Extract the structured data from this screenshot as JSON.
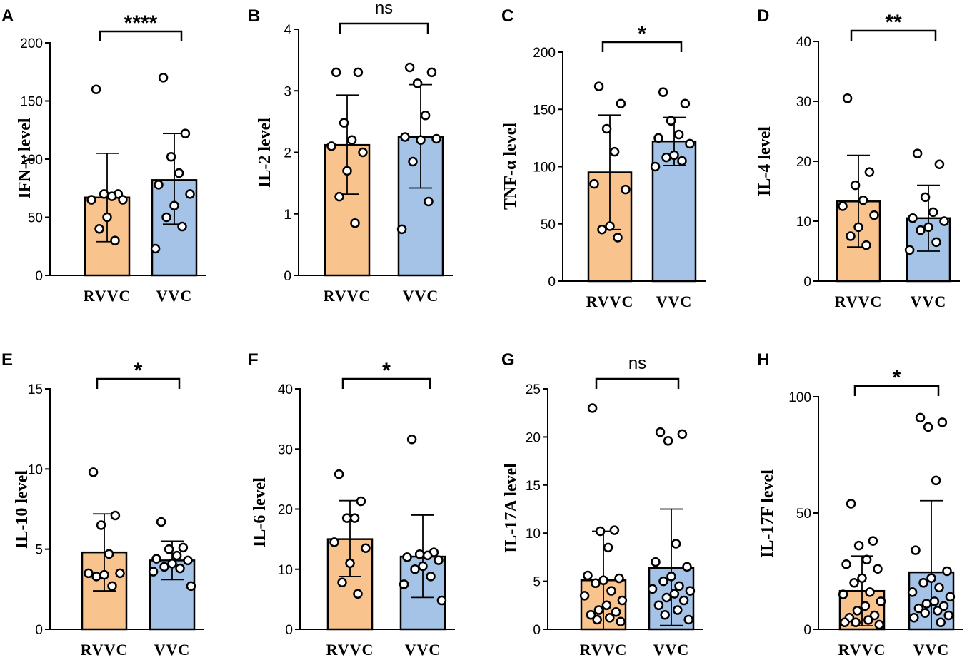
{
  "figure": {
    "colors": {
      "rvvc_fill": "#F8C38D",
      "vvc_fill": "#A4C3E6",
      "stroke": "#000000",
      "point_fill": "#ffffff"
    }
  },
  "chart_data": [
    {
      "type": "bar",
      "panel": "A",
      "ylabel": "IFN-γ level",
      "categories": [
        "RVVC",
        "VVC"
      ],
      "ylim": [
        0,
        200
      ],
      "yticks": [
        0,
        50,
        100,
        150,
        200
      ],
      "significance": "****",
      "series": [
        {
          "name": "RVVC",
          "mean": 67,
          "sd_low": 29,
          "sd_high": 105,
          "points": [
            160,
            70,
            70,
            68,
            65,
            65,
            50,
            40,
            30
          ]
        },
        {
          "name": "VVC",
          "mean": 82,
          "sd_low": 44,
          "sd_high": 122,
          "points": [
            170,
            122,
            102,
            88,
            78,
            70,
            60,
            50,
            42,
            23
          ]
        }
      ]
    },
    {
      "type": "bar",
      "panel": "B",
      "ylabel": "IL-2 level",
      "categories": [
        "RVVC",
        "VVC"
      ],
      "ylim": [
        0,
        4
      ],
      "yticks": [
        0,
        1,
        2,
        3,
        4
      ],
      "significance": "ns",
      "series": [
        {
          "name": "RVVC",
          "mean": 2.12,
          "sd_low": 1.32,
          "sd_high": 2.93,
          "points": [
            3.3,
            3.3,
            2.48,
            2.2,
            2.1,
            2.0,
            1.7,
            1.28,
            0.85
          ]
        },
        {
          "name": "VVC",
          "mean": 2.25,
          "sd_low": 1.42,
          "sd_high": 3.1,
          "points": [
            3.38,
            3.3,
            3.12,
            2.6,
            2.25,
            2.22,
            2.2,
            1.85,
            1.2,
            0.75
          ]
        }
      ]
    },
    {
      "type": "bar",
      "panel": "C",
      "ylabel": "TNF-α level",
      "categories": [
        "RVVC",
        "VVC"
      ],
      "ylim": [
        0,
        200
      ],
      "yticks": [
        0,
        50,
        100,
        150,
        200
      ],
      "significance": "*",
      "series": [
        {
          "name": "RVVC",
          "mean": 95,
          "sd_low": 45,
          "sd_high": 145,
          "points": [
            170,
            155,
            133,
            113,
            85,
            80,
            48,
            45,
            38
          ]
        },
        {
          "name": "VVC",
          "mean": 122,
          "sd_low": 101,
          "sd_high": 143,
          "points": [
            165,
            155,
            140,
            128,
            125,
            120,
            110,
            108,
            105,
            100
          ]
        }
      ]
    },
    {
      "type": "bar",
      "panel": "D",
      "ylabel": "IL-4 level",
      "categories": [
        "RVVC",
        "VVC"
      ],
      "ylim": [
        0,
        40
      ],
      "yticks": [
        0,
        10,
        20,
        30,
        40
      ],
      "significance": "**",
      "series": [
        {
          "name": "RVVC",
          "mean": 13.3,
          "sd_low": 5.7,
          "sd_high": 21,
          "points": [
            30.5,
            18.2,
            16,
            13.5,
            12.5,
            11,
            9,
            7.5,
            6
          ]
        },
        {
          "name": "VVC",
          "mean": 10.5,
          "sd_low": 5,
          "sd_high": 16,
          "points": [
            21.3,
            19.5,
            14,
            11.5,
            10.5,
            10,
            9,
            8.5,
            6.5,
            5.2
          ]
        }
      ]
    },
    {
      "type": "bar",
      "panel": "E",
      "ylabel": "IL-10 level",
      "categories": [
        "RVVC",
        "VVC"
      ],
      "ylim": [
        0,
        15
      ],
      "yticks": [
        0,
        5,
        10,
        15
      ],
      "significance": "*",
      "series": [
        {
          "name": "RVVC",
          "mean": 4.8,
          "sd_low": 2.4,
          "sd_high": 7.2,
          "points": [
            9.8,
            7.1,
            6.5,
            4.7,
            3.5,
            3.5,
            3.4,
            3.3,
            2.7
          ]
        },
        {
          "name": "VVC",
          "mean": 4.3,
          "sd_low": 3.1,
          "sd_high": 5.5,
          "points": [
            6.7,
            5.1,
            5.0,
            4.6,
            4.4,
            4.3,
            4.1,
            3.9,
            3.8,
            3.6,
            2.7
          ]
        }
      ]
    },
    {
      "type": "bar",
      "panel": "F",
      "ylabel": "IL-6 level",
      "categories": [
        "RVVC",
        "VVC"
      ],
      "ylim": [
        0,
        40
      ],
      "yticks": [
        0,
        10,
        20,
        30,
        40
      ],
      "significance": "*",
      "series": [
        {
          "name": "RVVC",
          "mean": 15,
          "sd_low": 8.8,
          "sd_high": 21.4,
          "points": [
            25.8,
            21.3,
            18.5,
            18.5,
            14.5,
            13.5,
            11,
            7.8,
            5.9
          ]
        },
        {
          "name": "VVC",
          "mean": 12.1,
          "sd_low": 5.3,
          "sd_high": 19,
          "points": [
            31.6,
            12.8,
            12.5,
            12.3,
            12.0,
            11.5,
            10.5,
            10.0,
            8.8,
            7.5,
            4.8
          ]
        }
      ]
    },
    {
      "type": "bar",
      "panel": "G",
      "ylabel": "IL-17A level",
      "categories": [
        "RVVC",
        "VVC"
      ],
      "ylim": [
        0,
        25
      ],
      "yticks": [
        0,
        5,
        10,
        15,
        20,
        25
      ],
      "significance": "ns",
      "series": [
        {
          "name": "RVVC",
          "mean": 5.1,
          "sd_low": 0,
          "sd_high": 10.2,
          "points": [
            23,
            10.3,
            10.2,
            8.5,
            5.6,
            5.3,
            5.1,
            4.8,
            4.0,
            3.5,
            3.0,
            2.5,
            2.0,
            1.8,
            1.5,
            1.2,
            1.0,
            0.8
          ]
        },
        {
          "name": "VVC",
          "mean": 6.4,
          "sd_low": 0.4,
          "sd_high": 12.5,
          "points": [
            20.5,
            20.3,
            19.6,
            8.9,
            7.0,
            6.5,
            5.5,
            5.0,
            4.5,
            4.2,
            4.0,
            3.7,
            3.3,
            3.0,
            2.5,
            2.0,
            1.5,
            1.0
          ]
        }
      ]
    },
    {
      "type": "bar",
      "panel": "H",
      "ylabel": "IL-17F level",
      "categories": [
        "RVVC",
        "VVC"
      ],
      "ylim": [
        0,
        100
      ],
      "yticks": [
        0,
        50,
        100
      ],
      "significance": "*",
      "series": [
        {
          "name": "RVVC",
          "mean": 16.5,
          "sd_low": 1.5,
          "sd_high": 31.5,
          "points": [
            54,
            38,
            36,
            30,
            28,
            26,
            22,
            20,
            16,
            15,
            12,
            10,
            8,
            6,
            5,
            4,
            3,
            2,
            3
          ]
        },
        {
          "name": "VVC",
          "mean": 24.5,
          "sd_low": 0,
          "sd_high": 55.3,
          "points": [
            91,
            89,
            87,
            64,
            34,
            25,
            22,
            20,
            18,
            16,
            14,
            12,
            11,
            10,
            9,
            8,
            7,
            6,
            5,
            3
          ]
        }
      ]
    }
  ]
}
